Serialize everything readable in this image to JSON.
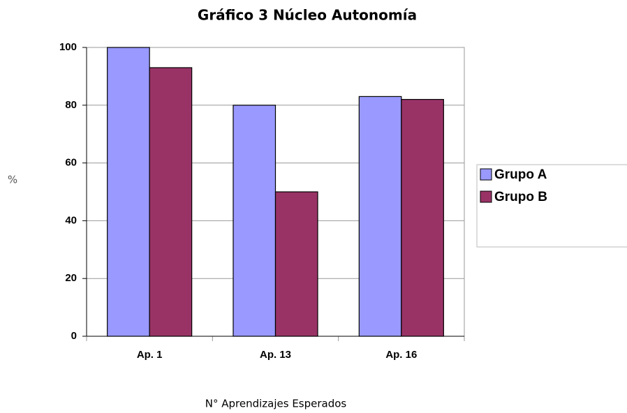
{
  "chart_data": {
    "type": "bar",
    "title": "Gráfico 3 Núcleo Autonomía",
    "xlabel": "N° Aprendizajes Esperados",
    "ylabel": "%",
    "categories": [
      "Ap. 1",
      "Ap. 13",
      "Ap. 16"
    ],
    "series": [
      {
        "name": "Grupo A",
        "color": "#9999ff",
        "values": [
          100,
          80,
          83
        ]
      },
      {
        "name": "Grupo B",
        "color": "#993366",
        "values": [
          93,
          50,
          82
        ]
      }
    ],
    "ylim": [
      0,
      100
    ],
    "yticks": [
      0,
      20,
      40,
      60,
      80,
      100
    ],
    "grid": true,
    "legend": "right"
  }
}
